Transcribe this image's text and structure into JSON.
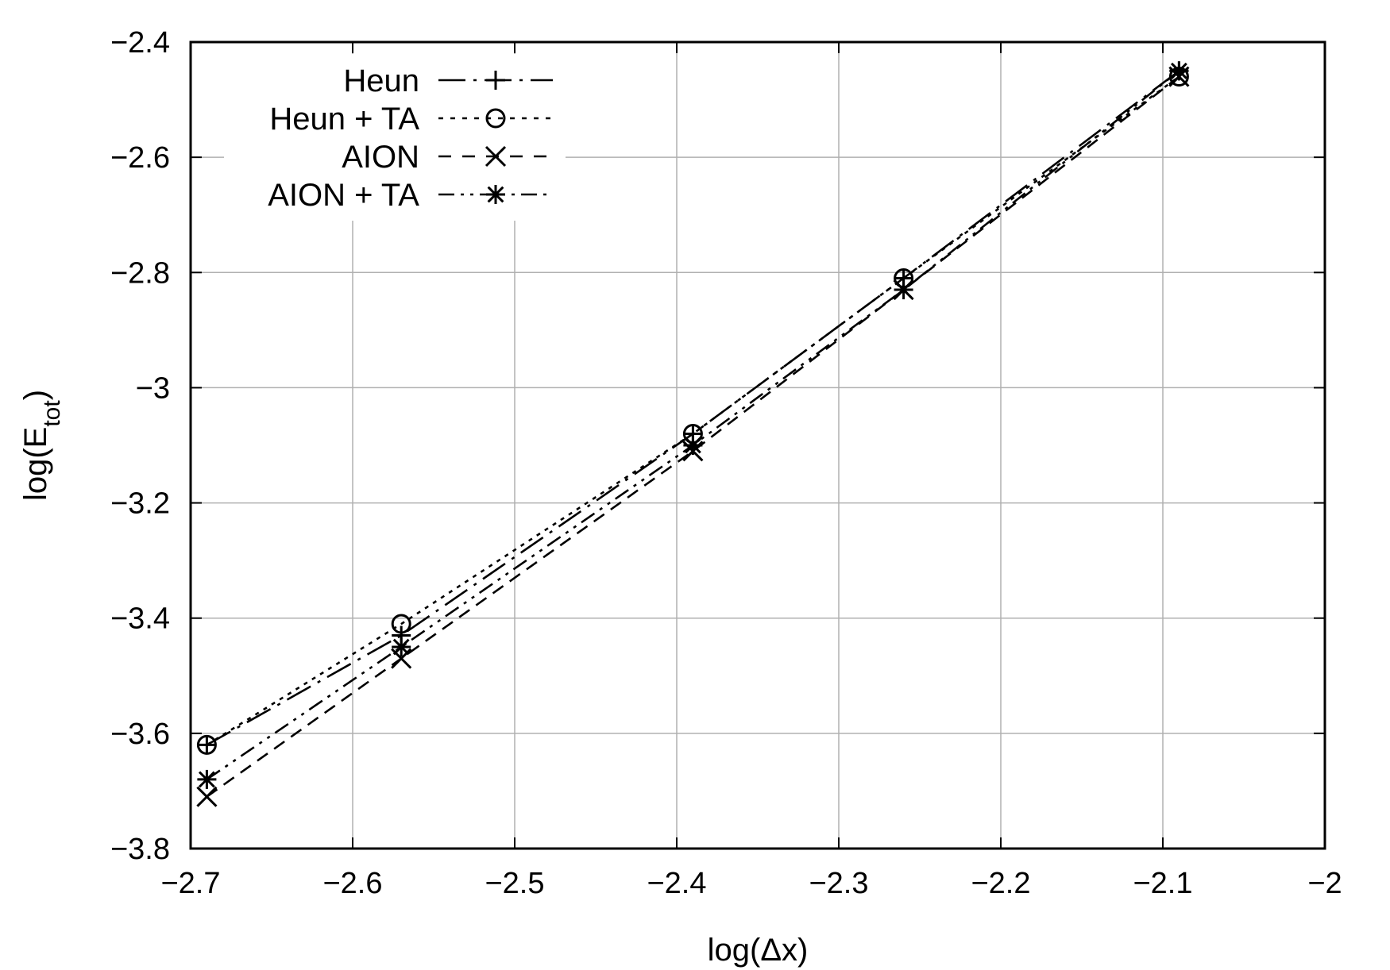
{
  "chart_data": {
    "type": "line",
    "title": "",
    "xlabel": "log(Δx)",
    "ylabel_main": "log(E",
    "ylabel_sub": "tot",
    "ylabel_close": ")",
    "xlim": [
      -2.7,
      -2.0
    ],
    "ylim": [
      -3.8,
      -2.4
    ],
    "xticks": [
      -2.7,
      -2.6,
      -2.5,
      -2.4,
      -2.3,
      -2.2,
      -2.1,
      -2.0
    ],
    "xtick_labels": [
      "−2.7",
      "−2.6",
      "−2.5",
      "−2.4",
      "−2.3",
      "−2.2",
      "−2.1",
      "−2"
    ],
    "yticks": [
      -3.8,
      -3.6,
      -3.4,
      -3.2,
      -3.0,
      -2.8,
      -2.6,
      -2.4
    ],
    "ytick_labels": [
      "−3.8",
      "−3.6",
      "−3.4",
      "−3.2",
      "−3",
      "−2.8",
      "−2.6",
      "−2.4"
    ],
    "grid": true,
    "legend_position": "top-left",
    "series": [
      {
        "name": "Heun",
        "dash": "long-dash-dot",
        "marker": "plus",
        "x": [
          -2.69,
          -2.57,
          -2.39,
          -2.26,
          -2.09
        ],
        "y": [
          -3.62,
          -3.43,
          -3.08,
          -2.81,
          -2.45
        ]
      },
      {
        "name": "Heun + TA",
        "dash": "dotted",
        "marker": "circle",
        "x": [
          -2.69,
          -2.57,
          -2.39,
          -2.26,
          -2.09
        ],
        "y": [
          -3.62,
          -3.41,
          -3.08,
          -2.81,
          -2.46
        ]
      },
      {
        "name": "AION",
        "dash": "dashed",
        "marker": "cross",
        "x": [
          -2.69,
          -2.57,
          -2.39,
          -2.26,
          -2.09
        ],
        "y": [
          -3.71,
          -3.47,
          -3.11,
          -2.83,
          -2.46
        ]
      },
      {
        "name": "AION + TA",
        "dash": "dash-dot-dot",
        "marker": "star",
        "x": [
          -2.69,
          -2.57,
          -2.39,
          -2.26,
          -2.09
        ],
        "y": [
          -3.68,
          -3.45,
          -3.1,
          -2.83,
          -2.45
        ]
      }
    ]
  }
}
